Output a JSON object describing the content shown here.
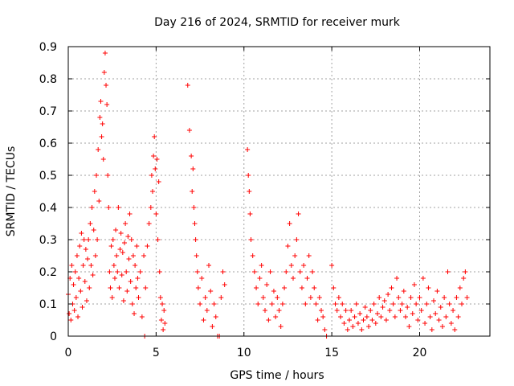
{
  "chart_data": {
    "type": "scatter",
    "title": "Day 216 of 2024, SRMTID for receiver murk",
    "xlabel": "GPS time / hours",
    "ylabel": "SRMTID / TECUs",
    "xlim": [
      0,
      24
    ],
    "ylim": [
      0,
      0.9
    ],
    "xticks": [
      "0",
      "5",
      "10",
      "15",
      "20"
    ],
    "yticks": [
      "0",
      "0.1",
      "0.2",
      "0.3",
      "0.4",
      "0.5",
      "0.6",
      "0.7",
      "0.8",
      "0.9"
    ],
    "grid": true,
    "marker": "+",
    "series": [
      {
        "color": "#ff0000",
        "points": [
          [
            0.0,
            0.13
          ],
          [
            0.05,
            0.07
          ],
          [
            0.1,
            0.18
          ],
          [
            0.15,
            0.05
          ],
          [
            0.2,
            0.22
          ],
          [
            0.25,
            0.1
          ],
          [
            0.3,
            0.16
          ],
          [
            0.35,
            0.08
          ],
          [
            0.4,
            0.2
          ],
          [
            0.45,
            0.12
          ],
          [
            0.5,
            0.25
          ],
          [
            0.55,
            0.06
          ],
          [
            0.6,
            0.18
          ],
          [
            0.65,
            0.28
          ],
          [
            0.7,
            0.14
          ],
          [
            0.75,
            0.32
          ],
          [
            0.8,
            0.09
          ],
          [
            0.85,
            0.22
          ],
          [
            0.9,
            0.3
          ],
          [
            0.95,
            0.17
          ],
          [
            1.0,
            0.27
          ],
          [
            1.05,
            0.11
          ],
          [
            1.1,
            0.24
          ],
          [
            1.15,
            0.3
          ],
          [
            1.2,
            0.15
          ],
          [
            1.25,
            0.35
          ],
          [
            1.3,
            0.22
          ],
          [
            1.35,
            0.4
          ],
          [
            1.4,
            0.19
          ],
          [
            1.45,
            0.33
          ],
          [
            1.5,
            0.45
          ],
          [
            1.55,
            0.25
          ],
          [
            1.6,
            0.5
          ],
          [
            1.65,
            0.3
          ],
          [
            1.7,
            0.58
          ],
          [
            1.75,
            0.42
          ],
          [
            1.8,
            0.68
          ],
          [
            1.85,
            0.73
          ],
          [
            1.9,
            0.62
          ],
          [
            1.95,
            0.66
          ],
          [
            2.0,
            0.55
          ],
          [
            2.05,
            0.82
          ],
          [
            2.1,
            0.88
          ],
          [
            2.15,
            0.78
          ],
          [
            2.2,
            0.72
          ],
          [
            2.25,
            0.5
          ],
          [
            2.3,
            0.4
          ],
          [
            2.35,
            0.2
          ],
          [
            2.4,
            0.15
          ],
          [
            2.45,
            0.28
          ],
          [
            2.5,
            0.12
          ],
          [
            2.55,
            0.3
          ],
          [
            2.6,
            0.22
          ],
          [
            2.65,
            0.18
          ],
          [
            2.7,
            0.33
          ],
          [
            2.75,
            0.25
          ],
          [
            2.8,
            0.2
          ],
          [
            2.85,
            0.4
          ],
          [
            2.9,
            0.15
          ],
          [
            2.95,
            0.27
          ],
          [
            3.0,
            0.32
          ],
          [
            3.05,
            0.19
          ],
          [
            3.1,
            0.26
          ],
          [
            3.15,
            0.11
          ],
          [
            3.2,
            0.29
          ],
          [
            3.25,
            0.35
          ],
          [
            3.3,
            0.2
          ],
          [
            3.35,
            0.14
          ],
          [
            3.4,
            0.31
          ],
          [
            3.45,
            0.24
          ],
          [
            3.5,
            0.38
          ],
          [
            3.55,
            0.17
          ],
          [
            3.6,
            0.3
          ],
          [
            3.65,
            0.1
          ],
          [
            3.7,
            0.25
          ],
          [
            3.75,
            0.07
          ],
          [
            3.8,
            0.22
          ],
          [
            3.85,
            0.15
          ],
          [
            3.9,
            0.28
          ],
          [
            3.95,
            0.18
          ],
          [
            4.0,
            0.12
          ],
          [
            4.1,
            0.2
          ],
          [
            4.2,
            0.06
          ],
          [
            4.3,
            0.25
          ],
          [
            4.35,
            0.0
          ],
          [
            4.4,
            0.15
          ],
          [
            4.5,
            0.28
          ],
          [
            4.6,
            0.35
          ],
          [
            4.7,
            0.4
          ],
          [
            4.75,
            0.5
          ],
          [
            4.8,
            0.45
          ],
          [
            4.85,
            0.56
          ],
          [
            4.9,
            0.62
          ],
          [
            4.95,
            0.52
          ],
          [
            5.0,
            0.38
          ],
          [
            5.05,
            0.55
          ],
          [
            5.1,
            0.3
          ],
          [
            5.15,
            0.48
          ],
          [
            5.2,
            0.2
          ],
          [
            5.25,
            0.12
          ],
          [
            5.3,
            0.05
          ],
          [
            5.35,
            0.1
          ],
          [
            5.4,
            0.02
          ],
          [
            5.45,
            0.08
          ],
          [
            5.5,
            0.04
          ],
          [
            6.8,
            0.78
          ],
          [
            6.9,
            0.64
          ],
          [
            7.0,
            0.56
          ],
          [
            7.05,
            0.45
          ],
          [
            7.1,
            0.52
          ],
          [
            7.15,
            0.4
          ],
          [
            7.2,
            0.35
          ],
          [
            7.25,
            0.3
          ],
          [
            7.3,
            0.25
          ],
          [
            7.35,
            0.2
          ],
          [
            7.4,
            0.15
          ],
          [
            7.5,
            0.1
          ],
          [
            7.6,
            0.18
          ],
          [
            7.7,
            0.05
          ],
          [
            7.8,
            0.12
          ],
          [
            7.9,
            0.08
          ],
          [
            8.0,
            0.22
          ],
          [
            8.1,
            0.14
          ],
          [
            8.2,
            0.03
          ],
          [
            8.3,
            0.1
          ],
          [
            8.4,
            0.06
          ],
          [
            8.5,
            0.0
          ],
          [
            8.6,
            0.0
          ],
          [
            8.7,
            0.12
          ],
          [
            8.8,
            0.2
          ],
          [
            8.9,
            0.16
          ],
          [
            10.2,
            0.58
          ],
          [
            10.25,
            0.5
          ],
          [
            10.3,
            0.45
          ],
          [
            10.35,
            0.38
          ],
          [
            10.4,
            0.3
          ],
          [
            10.5,
            0.25
          ],
          [
            10.6,
            0.2
          ],
          [
            10.7,
            0.15
          ],
          [
            10.8,
            0.1
          ],
          [
            10.9,
            0.18
          ],
          [
            11.0,
            0.22
          ],
          [
            11.1,
            0.12
          ],
          [
            11.2,
            0.08
          ],
          [
            11.3,
            0.16
          ],
          [
            11.4,
            0.05
          ],
          [
            11.5,
            0.2
          ],
          [
            11.6,
            0.1
          ],
          [
            11.7,
            0.14
          ],
          [
            11.8,
            0.06
          ],
          [
            11.9,
            0.12
          ],
          [
            12.0,
            0.08
          ],
          [
            12.1,
            0.03
          ],
          [
            12.2,
            0.1
          ],
          [
            12.3,
            0.15
          ],
          [
            12.4,
            0.2
          ],
          [
            12.5,
            0.28
          ],
          [
            12.6,
            0.35
          ],
          [
            12.7,
            0.22
          ],
          [
            12.8,
            0.18
          ],
          [
            12.9,
            0.25
          ],
          [
            13.0,
            0.3
          ],
          [
            13.1,
            0.38
          ],
          [
            13.2,
            0.2
          ],
          [
            13.3,
            0.15
          ],
          [
            13.4,
            0.22
          ],
          [
            13.5,
            0.1
          ],
          [
            13.6,
            0.18
          ],
          [
            13.7,
            0.25
          ],
          [
            13.8,
            0.12
          ],
          [
            13.9,
            0.2
          ],
          [
            14.0,
            0.15
          ],
          [
            14.1,
            0.1
          ],
          [
            14.2,
            0.05
          ],
          [
            14.3,
            0.12
          ],
          [
            14.4,
            0.08
          ],
          [
            14.5,
            0.06
          ],
          [
            14.6,
            0.02
          ],
          [
            14.7,
            0.0
          ],
          [
            15.0,
            0.22
          ],
          [
            15.1,
            0.15
          ],
          [
            15.2,
            0.1
          ],
          [
            15.3,
            0.08
          ],
          [
            15.4,
            0.12
          ],
          [
            15.5,
            0.06
          ],
          [
            15.6,
            0.1
          ],
          [
            15.7,
            0.04
          ],
          [
            15.8,
            0.08
          ],
          [
            15.9,
            0.02
          ],
          [
            16.0,
            0.05
          ],
          [
            16.1,
            0.08
          ],
          [
            16.2,
            0.03
          ],
          [
            16.3,
            0.06
          ],
          [
            16.4,
            0.1
          ],
          [
            16.5,
            0.04
          ],
          [
            16.6,
            0.07
          ],
          [
            16.7,
            0.02
          ],
          [
            16.8,
            0.05
          ],
          [
            16.9,
            0.09
          ],
          [
            17.0,
            0.06
          ],
          [
            17.1,
            0.03
          ],
          [
            17.2,
            0.08
          ],
          [
            17.3,
            0.05
          ],
          [
            17.4,
            0.1
          ],
          [
            17.5,
            0.04
          ],
          [
            17.6,
            0.07
          ],
          [
            17.7,
            0.12
          ],
          [
            17.8,
            0.06
          ],
          [
            17.9,
            0.09
          ],
          [
            18.0,
            0.11
          ],
          [
            18.1,
            0.05
          ],
          [
            18.2,
            0.13
          ],
          [
            18.3,
            0.08
          ],
          [
            18.4,
            0.15
          ],
          [
            18.5,
            0.1
          ],
          [
            18.6,
            0.06
          ],
          [
            18.7,
            0.18
          ],
          [
            18.8,
            0.12
          ],
          [
            18.9,
            0.08
          ],
          [
            19.0,
            0.1
          ],
          [
            19.1,
            0.14
          ],
          [
            19.2,
            0.06
          ],
          [
            19.3,
            0.09
          ],
          [
            19.4,
            0.03
          ],
          [
            19.5,
            0.12
          ],
          [
            19.6,
            0.07
          ],
          [
            19.7,
            0.16
          ],
          [
            19.8,
            0.1
          ],
          [
            19.9,
            0.05
          ],
          [
            20.0,
            0.12
          ],
          [
            20.1,
            0.08
          ],
          [
            20.2,
            0.18
          ],
          [
            20.3,
            0.04
          ],
          [
            20.4,
            0.1
          ],
          [
            20.5,
            0.15
          ],
          [
            20.6,
            0.06
          ],
          [
            20.7,
            0.02
          ],
          [
            20.8,
            0.11
          ],
          [
            20.9,
            0.07
          ],
          [
            21.0,
            0.14
          ],
          [
            21.1,
            0.05
          ],
          [
            21.2,
            0.09
          ],
          [
            21.3,
            0.03
          ],
          [
            21.4,
            0.12
          ],
          [
            21.5,
            0.06
          ],
          [
            21.6,
            0.2
          ],
          [
            21.7,
            0.1
          ],
          [
            21.8,
            0.04
          ],
          [
            21.9,
            0.08
          ],
          [
            22.0,
            0.02
          ],
          [
            22.1,
            0.12
          ],
          [
            22.2,
            0.06
          ],
          [
            22.3,
            0.15
          ],
          [
            22.4,
            0.1
          ],
          [
            22.5,
            0.18
          ],
          [
            22.6,
            0.2
          ],
          [
            22.7,
            0.12
          ]
        ]
      }
    ]
  }
}
